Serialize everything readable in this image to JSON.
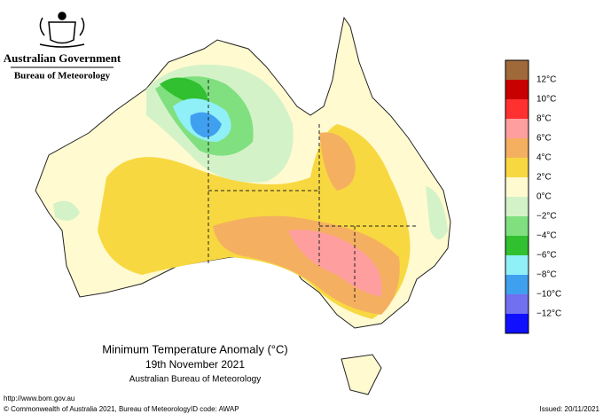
{
  "header": {
    "government": "Australian Government",
    "bureau": "Bureau of Meteorology"
  },
  "legend": {
    "swatches": [
      "#a0693a",
      "#c80000",
      "#ff3030",
      "#ff9e9e",
      "#f4b060",
      "#f8d840",
      "#fffad0",
      "#d4f2c8",
      "#80e080",
      "#30c030",
      "#90f0f8",
      "#40a0f0",
      "#7070f0",
      "#1010ff"
    ],
    "labels": [
      "12°C",
      "10°C",
      "8°C",
      "6°C",
      "4°C",
      "2°C",
      "0°C",
      "−2°C",
      "−4°C",
      "−6°C",
      "−8°C",
      "−10°C",
      "−12°C"
    ]
  },
  "title": {
    "line1": "Minimum Temperature Anomaly (°C)",
    "line2": "19th November 2021",
    "line3": "Australian Bureau of Meteorology"
  },
  "footer": {
    "url": "http://www.bom.gov.au",
    "copyright": "© Commonwealth of Australia 2021, Bureau of Meteorology",
    "id": "ID code: AWAP",
    "issued": "Issued: 20/11/2021"
  }
}
